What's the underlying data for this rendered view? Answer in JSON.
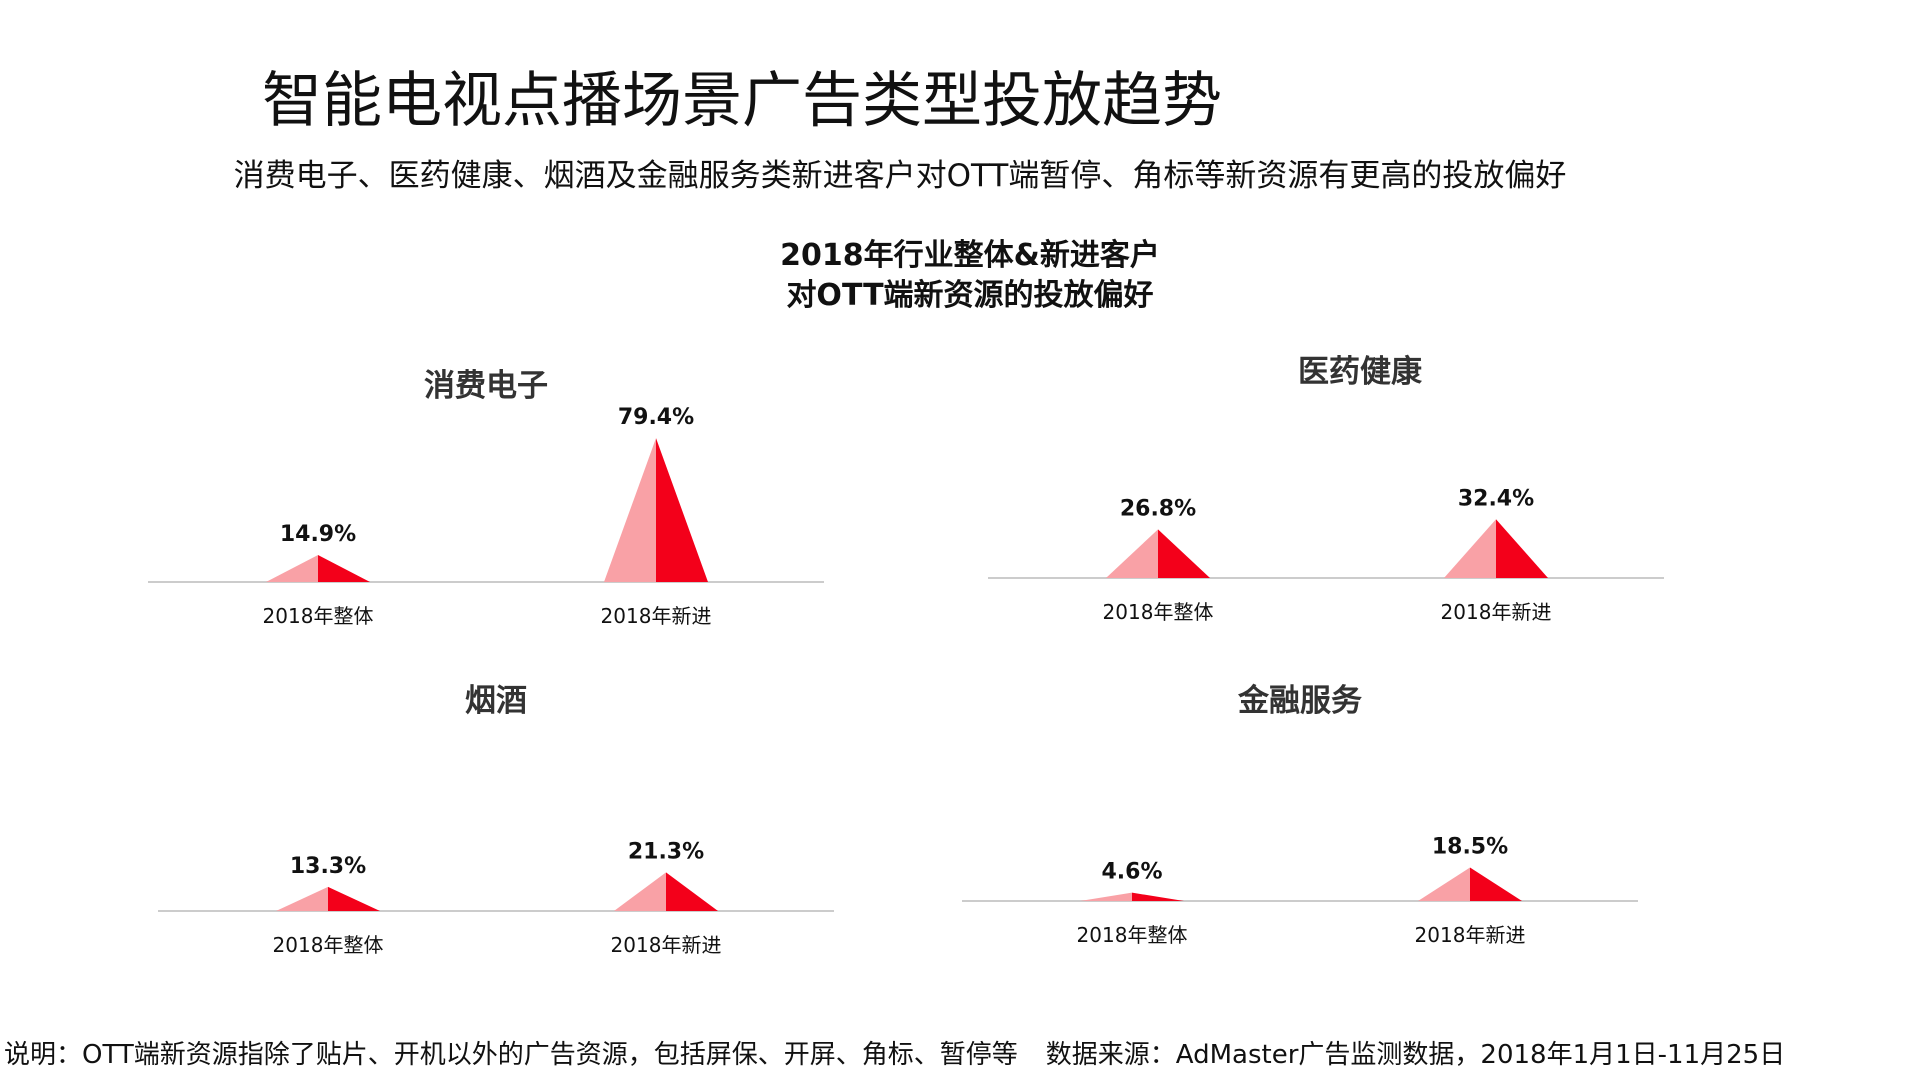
{
  "title": "智能电视点播场景广告类型投放趋势",
  "subtitle": "消费电子、医药健康、烟酒及金融服务类新进客户对OTT端暂停、角标等新资源有更高的投放偏好",
  "main_chart_title": {
    "line1": "2018年行业整体&新进客户",
    "line2": "对OTT端新资源的投放偏好"
  },
  "colors": {
    "light": "#F9A1A6",
    "dark": "#F3001A",
    "baseline": "#CCCCCC"
  },
  "chart_data": [
    {
      "type": "bar",
      "title": "消费电子",
      "categories": [
        "2018年整体",
        "2018年新进"
      ],
      "values": [
        14.9,
        79.4
      ],
      "labels": [
        "14.9%",
        "79.4%"
      ],
      "ylim": [
        0,
        80
      ]
    },
    {
      "type": "bar",
      "title": "医药健康",
      "categories": [
        "2018年整体",
        "2018年新进"
      ],
      "values": [
        26.8,
        32.4
      ],
      "labels": [
        "26.8%",
        "32.4%"
      ],
      "ylim": [
        0,
        80
      ]
    },
    {
      "type": "bar",
      "title": "烟酒",
      "categories": [
        "2018年整体",
        "2018年新进"
      ],
      "values": [
        13.3,
        21.3
      ],
      "labels": [
        "13.3%",
        "21.3%"
      ],
      "ylim": [
        0,
        80
      ]
    },
    {
      "type": "bar",
      "title": "金融服务",
      "categories": [
        "2018年整体",
        "2018年新进"
      ],
      "values": [
        4.6,
        18.5
      ],
      "labels": [
        "4.6%",
        "18.5%"
      ],
      "ylim": [
        0,
        80
      ]
    }
  ],
  "footnote": {
    "note": "说明：OTT端新资源指除了贴片、开机以外的广告资源，包括屏保、开屏、角标、暂停等",
    "source": "数据来源：AdMaster广告监测数据，2018年1月1日-11月25日"
  }
}
